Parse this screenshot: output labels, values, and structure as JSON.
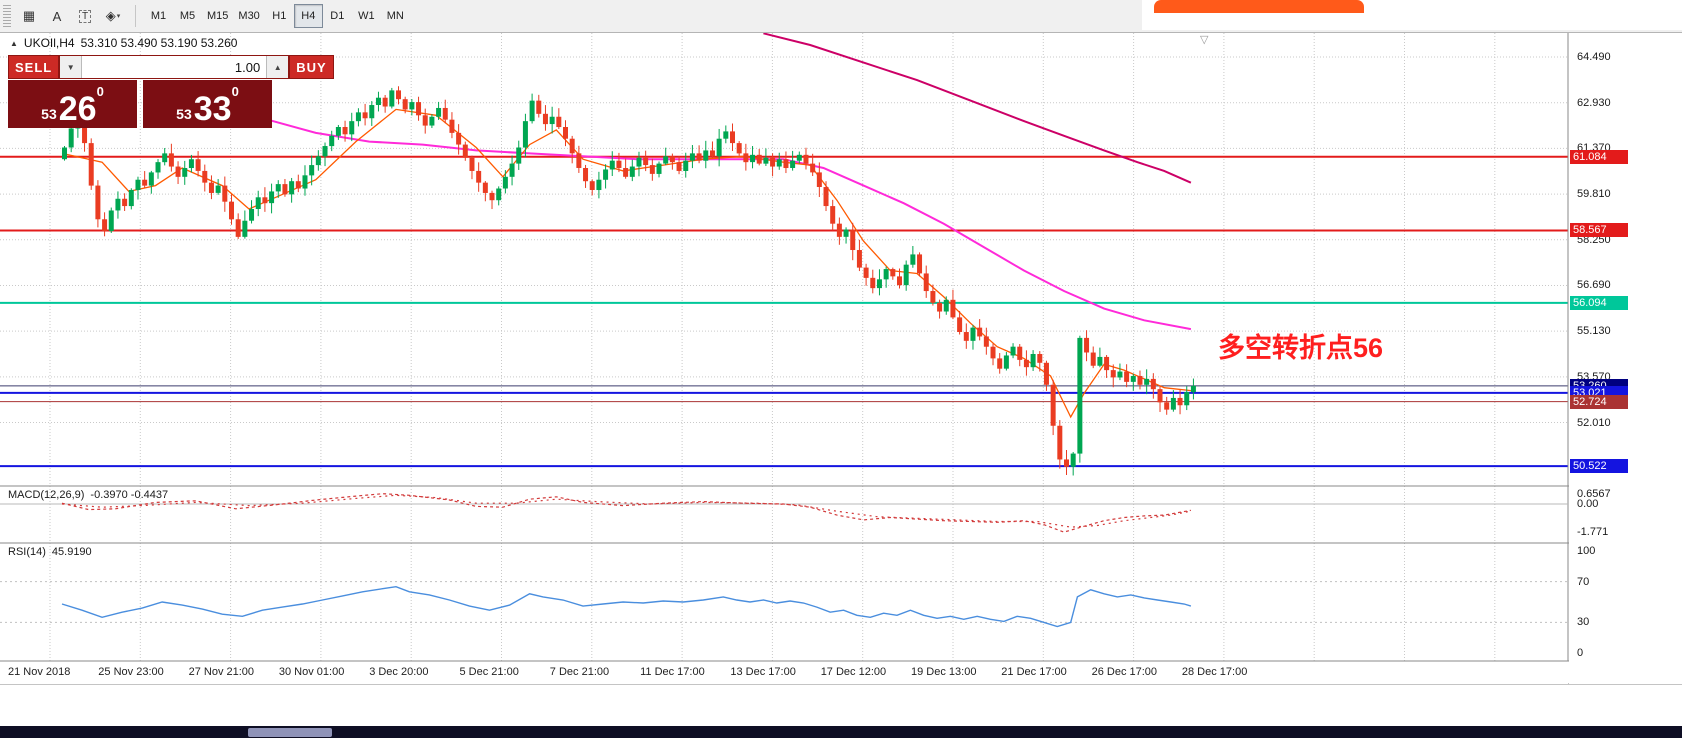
{
  "toolbar": {
    "tools": [
      {
        "name": "stamp-grid-icon",
        "glyph": "▦"
      },
      {
        "name": "text-label-icon",
        "glyph": "A"
      },
      {
        "name": "text-box-icon",
        "glyph": "T",
        "boxed": true
      },
      {
        "name": "shapes-dropdown-icon",
        "glyph": "◈",
        "caret": true
      }
    ],
    "timeframes": [
      {
        "label": "M1"
      },
      {
        "label": "M5"
      },
      {
        "label": "M15"
      },
      {
        "label": "M30"
      },
      {
        "label": "H1"
      },
      {
        "label": "H4",
        "active": true
      },
      {
        "label": "D1"
      },
      {
        "label": "W1"
      },
      {
        "label": "MN"
      }
    ]
  },
  "symbol_bar": {
    "toggle_glyph": "▲",
    "symbol": "UKOIl,H4",
    "ohlc": "53.310 53.490 53.190 53.260"
  },
  "one_click": {
    "sell_label": "SELL",
    "buy_label": "BUY",
    "volume": "1.00",
    "caret_down": "▼",
    "caret_up": "▲",
    "sell_price": {
      "small": "53",
      "big": "26",
      "sup": "0"
    },
    "buy_price": {
      "small": "53",
      "big": "33",
      "sup": "0"
    }
  },
  "indicators": {
    "macd_name": "MACD(12,26,9)",
    "macd_values": "-0.3970 -0.4437",
    "rsi_name": "RSI(14)",
    "rsi_value": "45.9190"
  },
  "annotation": {
    "text": "多空转折点56",
    "color": "#ff1f1f"
  },
  "shift_marker_glyph": "▽",
  "axis": {
    "price_ticks": [
      "64.490",
      "62.930",
      "61.370",
      "59.810",
      "58.250",
      "56.690",
      "55.130",
      "53.570",
      "52.010"
    ],
    "macd_ticks": [
      "0.6567",
      "0.00",
      "-1.771"
    ],
    "rsi_ticks": [
      "100",
      "70",
      "30",
      "0"
    ],
    "time_labels": [
      "21 Nov 2018",
      "25 Nov 23:00",
      "27 Nov 21:00",
      "30 Nov 01:00",
      "3 Dec 20:00",
      "5 Dec 21:00",
      "7 Dec 21:00",
      "11 Dec 17:00",
      "13 Dec 17:00",
      "17 Dec 12:00",
      "19 Dec 13:00",
      "21 Dec 17:00",
      "26 Dec 17:00",
      "28 Dec 17:00"
    ]
  },
  "colors": {
    "up_candle": "#00a651",
    "down_candle": "#ea3c22",
    "ma_fast": "#ff5a00",
    "ma_mid": "#ff2ad9",
    "ma_slow": "#cc0066",
    "macd": "#d23a3a",
    "rsi": "#4a8ede",
    "grid": "#c9c9c9",
    "pane_border": "#8a8a8a",
    "levels": {
      "red": "#e31b1b",
      "green": "#00c79a",
      "blue": "#1414e0",
      "darkred": "#aa3333",
      "navy": "#000080",
      "current_line": "#3c3c6e"
    },
    "button_red": "#cd2a25",
    "price_panel_red": "#7c0e13",
    "overlay_tab_orange": "#ff5a1a",
    "taskbar": "#0e0e24"
  },
  "chart_data": {
    "type": "candlestick",
    "symbol": "UKOIl",
    "timeframe": "H4",
    "last_ohlc": {
      "open": 53.31,
      "high": 53.49,
      "low": 53.19,
      "close": 53.26
    },
    "price_range_visible": [
      49.9,
      65.3
    ],
    "open_first": 61.0,
    "closes": [
      61.4,
      62.05,
      62.25,
      61.55,
      60.1,
      58.95,
      58.55,
      59.25,
      59.65,
      59.4,
      59.95,
      60.3,
      60.1,
      60.55,
      60.9,
      61.2,
      60.75,
      60.4,
      60.7,
      61.0,
      60.6,
      60.2,
      59.85,
      60.1,
      59.55,
      58.95,
      58.35,
      58.9,
      59.3,
      59.7,
      59.5,
      59.9,
      60.15,
      59.8,
      60.25,
      60.0,
      60.45,
      60.8,
      61.1,
      61.45,
      61.8,
      62.1,
      61.85,
      62.3,
      62.6,
      62.4,
      62.85,
      63.1,
      62.8,
      63.35,
      63.05,
      62.7,
      62.95,
      62.5,
      62.15,
      62.45,
      62.75,
      62.35,
      61.9,
      61.5,
      61.05,
      60.6,
      60.2,
      59.85,
      59.6,
      60.0,
      60.4,
      60.85,
      61.4,
      62.3,
      63.0,
      62.55,
      62.2,
      62.45,
      62.1,
      61.7,
      61.2,
      60.7,
      60.25,
      59.95,
      60.3,
      60.65,
      60.95,
      60.7,
      60.4,
      60.75,
      61.05,
      60.8,
      60.5,
      60.85,
      61.1,
      60.9,
      60.6,
      60.95,
      61.2,
      60.95,
      61.3,
      61.1,
      61.7,
      61.95,
      61.55,
      61.2,
      60.9,
      61.15,
      60.85,
      61.05,
      60.75,
      61.0,
      60.7,
      60.95,
      61.15,
      60.85,
      60.55,
      60.05,
      59.4,
      58.8,
      58.35,
      58.6,
      57.9,
      57.3,
      56.95,
      56.6,
      56.9,
      57.25,
      57.0,
      56.7,
      57.4,
      57.75,
      57.1,
      56.5,
      56.1,
      55.8,
      56.2,
      55.6,
      55.1,
      54.8,
      55.25,
      54.95,
      54.6,
      54.2,
      53.85,
      54.3,
      54.6,
      54.15,
      53.9,
      54.35,
      54.05,
      53.3,
      51.9,
      50.75,
      50.5,
      50.95,
      54.9,
      54.4,
      53.95,
      54.25,
      53.8,
      53.55,
      53.75,
      53.4,
      53.6,
      53.3,
      53.5,
      53.15,
      52.7,
      52.45,
      52.85,
      52.6,
      53.05,
      53.26
    ],
    "levels": [
      {
        "price": 61.084,
        "color_key": "red",
        "width": 2
      },
      {
        "price": 58.567,
        "color_key": "red",
        "width": 2
      },
      {
        "price": 56.094,
        "color_key": "green",
        "width": 2
      },
      {
        "price": 53.26,
        "color_key": "navy",
        "width": 1,
        "current": true
      },
      {
        "price": 53.021,
        "color_key": "blue",
        "width": 2
      },
      {
        "price": 52.724,
        "color_key": "darkred",
        "width": 1
      },
      {
        "price": 50.522,
        "color_key": "blue",
        "width": 2
      }
    ],
    "ma_fast": [
      [
        0,
        61.2
      ],
      [
        6,
        60.9
      ],
      [
        10,
        59.9
      ],
      [
        14,
        60.1
      ],
      [
        18,
        60.7
      ],
      [
        24,
        60.1
      ],
      [
        28,
        59.3
      ],
      [
        32,
        59.7
      ],
      [
        38,
        60.3
      ],
      [
        44,
        61.6
      ],
      [
        50,
        62.7
      ],
      [
        56,
        62.5
      ],
      [
        62,
        61.4
      ],
      [
        66,
        60.4
      ],
      [
        70,
        61.5
      ],
      [
        74,
        62.0
      ],
      [
        78,
        61.0
      ],
      [
        84,
        60.6
      ],
      [
        90,
        60.8
      ],
      [
        96,
        61.0
      ],
      [
        102,
        61.1
      ],
      [
        108,
        60.9
      ],
      [
        112,
        60.8
      ],
      [
        116,
        59.6
      ],
      [
        120,
        58.2
      ],
      [
        124,
        57.2
      ],
      [
        128,
        57.1
      ],
      [
        132,
        56.3
      ],
      [
        136,
        55.4
      ],
      [
        140,
        54.6
      ],
      [
        144,
        54.2
      ],
      [
        148,
        53.6
      ],
      [
        151,
        52.2
      ],
      [
        153,
        53.0
      ],
      [
        156,
        54.0
      ],
      [
        159,
        53.8
      ],
      [
        162,
        53.5
      ],
      [
        165,
        53.2
      ],
      [
        169,
        53.1
      ]
    ],
    "ma_mid": [
      [
        30,
        62.4
      ],
      [
        38,
        61.9
      ],
      [
        46,
        61.6
      ],
      [
        54,
        61.5
      ],
      [
        62,
        61.3
      ],
      [
        70,
        61.2
      ],
      [
        78,
        61.1
      ],
      [
        86,
        61.0
      ],
      [
        94,
        61.0
      ],
      [
        102,
        61.0
      ],
      [
        108,
        61.0
      ],
      [
        114,
        60.7
      ],
      [
        120,
        60.1
      ],
      [
        126,
        59.5
      ],
      [
        132,
        58.8
      ],
      [
        138,
        58.0
      ],
      [
        144,
        57.2
      ],
      [
        150,
        56.5
      ],
      [
        156,
        55.9
      ],
      [
        162,
        55.5
      ],
      [
        169,
        55.2
      ]
    ],
    "ma_slow": [
      [
        105,
        65.3
      ],
      [
        112,
        64.9
      ],
      [
        120,
        64.3
      ],
      [
        128,
        63.7
      ],
      [
        136,
        63.0
      ],
      [
        144,
        62.3
      ],
      [
        150,
        61.8
      ],
      [
        156,
        61.3
      ],
      [
        161,
        60.9
      ],
      [
        165,
        60.6
      ],
      [
        169,
        60.2
      ]
    ],
    "macd": {
      "range": [
        -1.771,
        0.6567
      ],
      "main": [
        [
          0,
          0.05
        ],
        [
          4,
          -0.35
        ],
        [
          8,
          -0.3
        ],
        [
          14,
          0.1
        ],
        [
          20,
          0.2
        ],
        [
          26,
          -0.3
        ],
        [
          32,
          -0.05
        ],
        [
          38,
          0.25
        ],
        [
          44,
          0.5
        ],
        [
          48,
          0.65
        ],
        [
          52,
          0.55
        ],
        [
          58,
          0.25
        ],
        [
          62,
          -0.15
        ],
        [
          66,
          -0.2
        ],
        [
          70,
          0.3
        ],
        [
          74,
          0.45
        ],
        [
          78,
          0.1
        ],
        [
          84,
          -0.1
        ],
        [
          90,
          0.05
        ],
        [
          96,
          0.15
        ],
        [
          102,
          0.05
        ],
        [
          108,
          0.0
        ],
        [
          112,
          -0.2
        ],
        [
          116,
          -0.7
        ],
        [
          120,
          -1.0
        ],
        [
          124,
          -0.85
        ],
        [
          128,
          -0.95
        ],
        [
          132,
          -1.05
        ],
        [
          136,
          -1.1
        ],
        [
          140,
          -1.15
        ],
        [
          144,
          -1.05
        ],
        [
          147,
          -1.3
        ],
        [
          150,
          -1.77
        ],
        [
          153,
          -1.4
        ],
        [
          156,
          -1.05
        ],
        [
          159,
          -0.85
        ],
        [
          162,
          -0.75
        ],
        [
          165,
          -0.7
        ],
        [
          167,
          -0.55
        ],
        [
          169,
          -0.397
        ]
      ],
      "signal": [
        [
          0,
          0.0
        ],
        [
          6,
          -0.2
        ],
        [
          12,
          -0.1
        ],
        [
          20,
          0.1
        ],
        [
          28,
          -0.1
        ],
        [
          36,
          0.05
        ],
        [
          44,
          0.35
        ],
        [
          50,
          0.55
        ],
        [
          56,
          0.4
        ],
        [
          62,
          0.05
        ],
        [
          68,
          0.05
        ],
        [
          74,
          0.3
        ],
        [
          80,
          0.15
        ],
        [
          88,
          0.0
        ],
        [
          96,
          0.1
        ],
        [
          104,
          0.05
        ],
        [
          110,
          -0.05
        ],
        [
          116,
          -0.45
        ],
        [
          122,
          -0.8
        ],
        [
          128,
          -0.9
        ],
        [
          134,
          -1.0
        ],
        [
          140,
          -1.1
        ],
        [
          146,
          -1.1
        ],
        [
          151,
          -1.45
        ],
        [
          155,
          -1.35
        ],
        [
          159,
          -1.05
        ],
        [
          163,
          -0.85
        ],
        [
          166,
          -0.7
        ],
        [
          169,
          -0.4437
        ]
      ]
    },
    "rsi": {
      "value": 45.919,
      "levels": [
        70,
        30
      ],
      "points": [
        [
          0,
          48
        ],
        [
          3,
          42
        ],
        [
          6,
          35
        ],
        [
          9,
          40
        ],
        [
          12,
          44
        ],
        [
          15,
          50
        ],
        [
          18,
          47
        ],
        [
          21,
          43
        ],
        [
          24,
          38
        ],
        [
          27,
          36
        ],
        [
          30,
          42
        ],
        [
          33,
          45
        ],
        [
          36,
          48
        ],
        [
          39,
          52
        ],
        [
          42,
          56
        ],
        [
          45,
          60
        ],
        [
          48,
          63
        ],
        [
          50,
          65
        ],
        [
          52,
          60
        ],
        [
          55,
          57
        ],
        [
          58,
          52
        ],
        [
          61,
          46
        ],
        [
          64,
          42
        ],
        [
          67,
          47
        ],
        [
          70,
          58
        ],
        [
          72,
          55
        ],
        [
          75,
          52
        ],
        [
          78,
          46
        ],
        [
          81,
          48
        ],
        [
          84,
          50
        ],
        [
          87,
          49
        ],
        [
          90,
          51
        ],
        [
          93,
          50
        ],
        [
          96,
          52
        ],
        [
          99,
          55
        ],
        [
          101,
          52
        ],
        [
          103,
          50
        ],
        [
          105,
          52
        ],
        [
          107,
          49
        ],
        [
          109,
          51
        ],
        [
          111,
          49
        ],
        [
          113,
          45
        ],
        [
          115,
          40
        ],
        [
          117,
          42
        ],
        [
          119,
          37
        ],
        [
          121,
          35
        ],
        [
          123,
          39
        ],
        [
          125,
          37
        ],
        [
          127,
          42
        ],
        [
          129,
          37
        ],
        [
          131,
          34
        ],
        [
          133,
          36
        ],
        [
          135,
          33
        ],
        [
          137,
          36
        ],
        [
          139,
          33
        ],
        [
          141,
          31
        ],
        [
          143,
          36
        ],
        [
          145,
          34
        ],
        [
          147,
          30
        ],
        [
          149,
          26
        ],
        [
          151,
          30
        ],
        [
          152,
          55
        ],
        [
          154,
          62
        ],
        [
          156,
          58
        ],
        [
          158,
          55
        ],
        [
          160,
          57
        ],
        [
          162,
          54
        ],
        [
          164,
          52
        ],
        [
          166,
          50
        ],
        [
          168,
          48
        ],
        [
          169,
          46
        ]
      ]
    }
  }
}
